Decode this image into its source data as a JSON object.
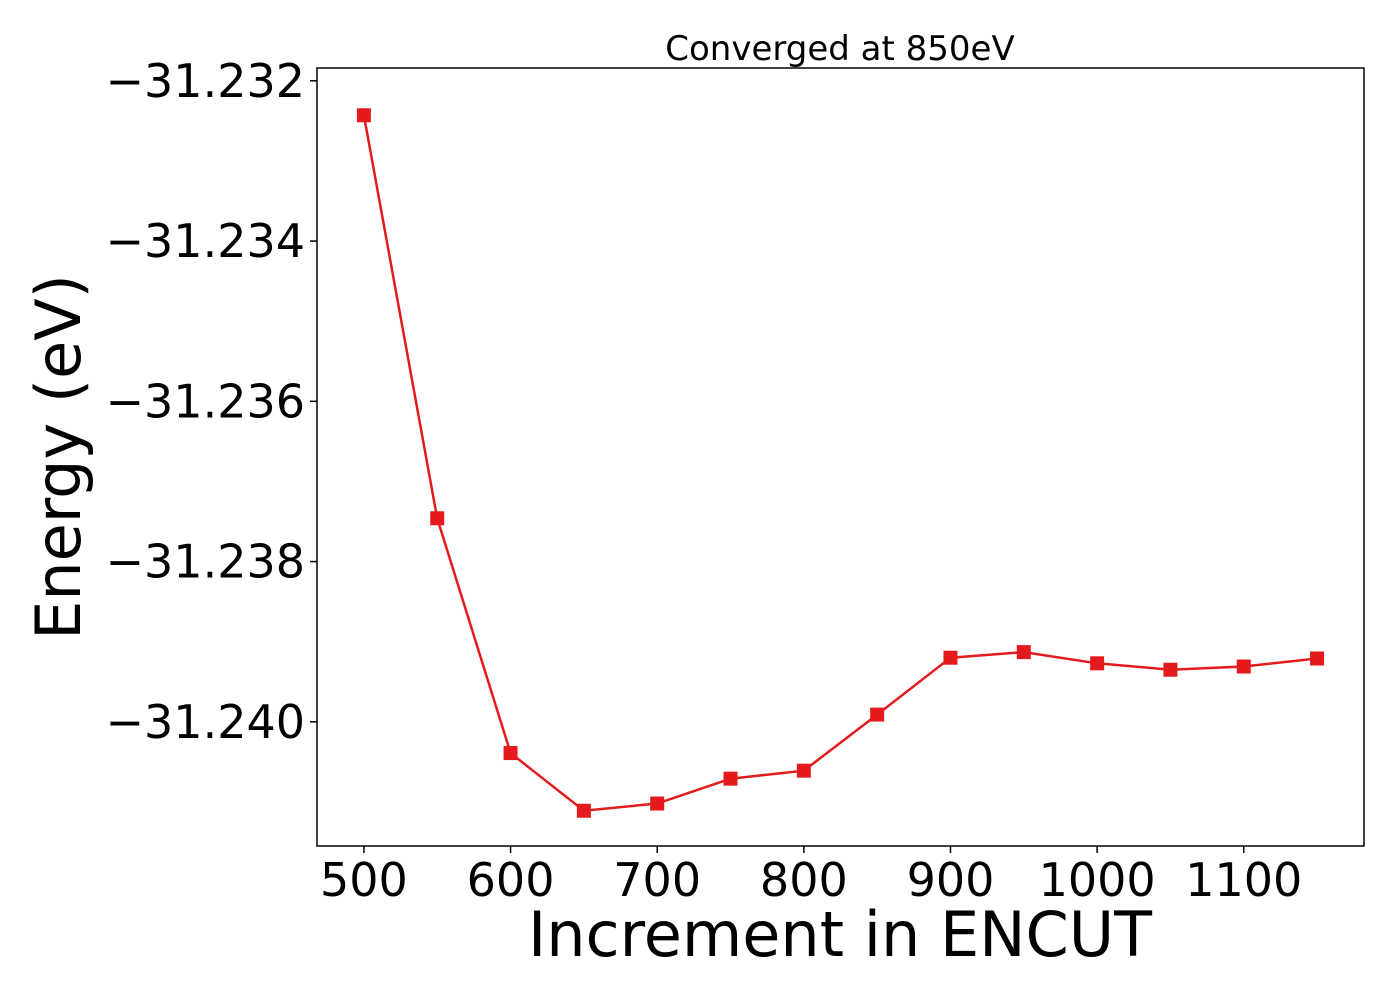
{
  "chart_data": {
    "type": "line",
    "title": "Converged at 850eV",
    "xlabel": "Increment in ENCUT",
    "ylabel": "Energy (eV)",
    "x_ticks": [
      "500",
      "600",
      "700",
      "800",
      "900",
      "1000",
      "1100"
    ],
    "x_tick_values": [
      500,
      600,
      700,
      800,
      900,
      1000,
      1100
    ],
    "y_ticks": [
      "−31.232",
      "−31.234",
      "−31.236",
      "−31.238",
      "−31.240"
    ],
    "y_tick_values": [
      -31.232,
      -31.234,
      -31.236,
      -31.238,
      -31.24
    ],
    "xlim": [
      468,
      1182
    ],
    "ylim": [
      -31.24155,
      -31.23184
    ],
    "grid": false,
    "marker": "square",
    "series": [
      {
        "color": "#e41a1c",
        "x": [
          500,
          550,
          600,
          650,
          700,
          750,
          800,
          850,
          900,
          950,
          1000,
          1050,
          1100,
          1150
        ],
        "y": [
          -31.23243,
          -31.23746,
          -31.24039,
          -31.24111,
          -31.24102,
          -31.24071,
          -31.24061,
          -31.23991,
          -31.2392,
          -31.23913,
          -31.23927,
          -31.23935,
          -31.23931,
          -31.23921
        ]
      }
    ]
  }
}
